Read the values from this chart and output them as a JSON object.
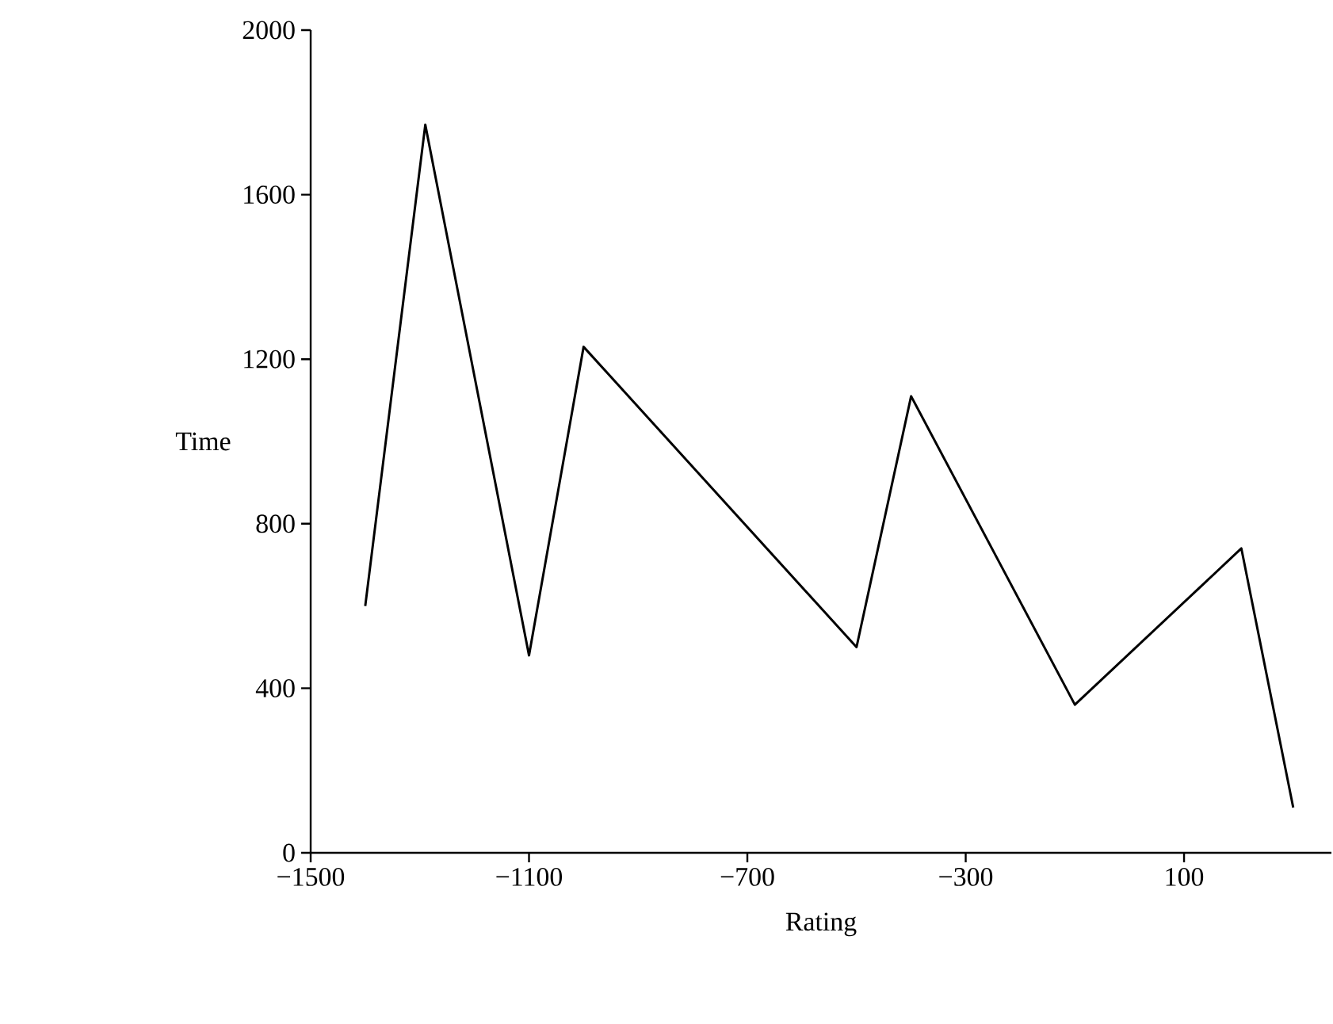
{
  "chart_data": {
    "type": "line",
    "xlabel": "Rating",
    "ylabel": "Time",
    "x": [
      -1400,
      -1290,
      -1100,
      -1000,
      -500,
      -400,
      -100,
      205,
      300
    ],
    "series": [
      {
        "color": "#000000",
        "values": [
          600,
          1770,
          480,
          1230,
          500,
          1110,
          360,
          740,
          110
        ]
      }
    ],
    "xlim": [
      -1500,
      370
    ],
    "ylim": [
      0,
      2000
    ],
    "xticks": [
      {
        "value": -1500,
        "label": "−1500"
      },
      {
        "value": -1100,
        "label": "−1100"
      },
      {
        "value": -700,
        "label": "−700"
      },
      {
        "value": -300,
        "label": "−300"
      },
      100
    ],
    "yticks": [
      0,
      400,
      800,
      1200,
      1600,
      2000
    ],
    "grid": false,
    "marker": "none",
    "line_style": "solid"
  }
}
